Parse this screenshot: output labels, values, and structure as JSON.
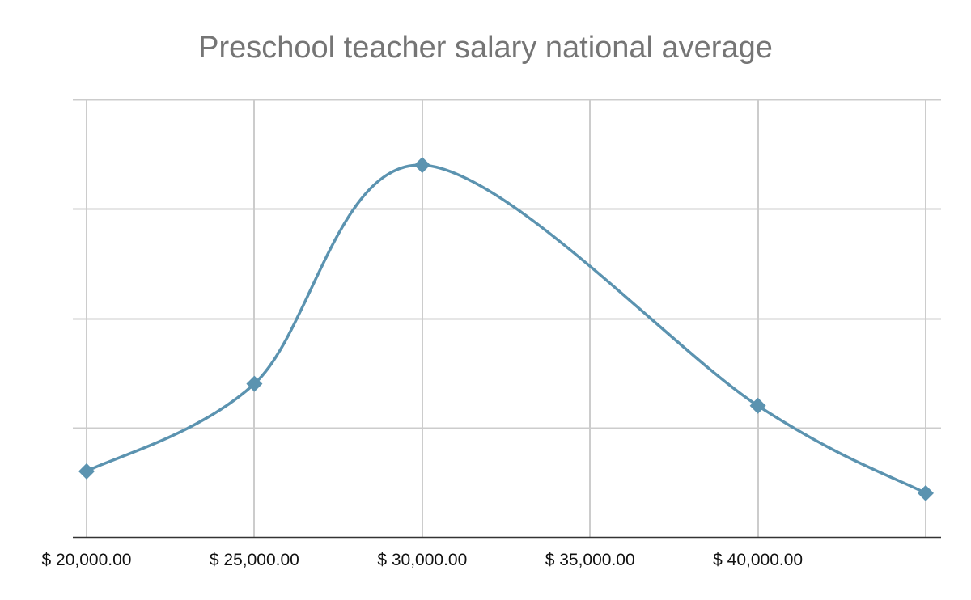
{
  "chart_data": {
    "type": "line",
    "title": "Preschool teacher salary national average",
    "xlabel": "",
    "ylabel": "",
    "x": [
      20000,
      25000,
      30000,
      35000,
      40000,
      45000
    ],
    "x_tick_values": [
      20000,
      25000,
      30000,
      35000,
      40000
    ],
    "x_tick_labels": [
      "$ 20,000.00",
      "$ 25,000.00",
      "$ 30,000.00",
      "$ 35,000.00",
      "$ 40,000.00"
    ],
    "series": [
      {
        "values": [
          0.2,
          0.6,
          1.6,
          null,
          0.5,
          0.1
        ],
        "marker": "diamond"
      }
    ],
    "ylim": [
      -0.1,
      1.9
    ],
    "y_gridlines": [
      -0.1,
      0.4,
      0.9,
      1.4,
      1.9
    ],
    "y_tick_labels_shown": false,
    "smooth": true,
    "grid": true,
    "colors": {
      "line": "#5b93b0",
      "grid": "#cccccc",
      "axis": "#333333",
      "title": "#757575",
      "ticks": "#111111"
    }
  }
}
